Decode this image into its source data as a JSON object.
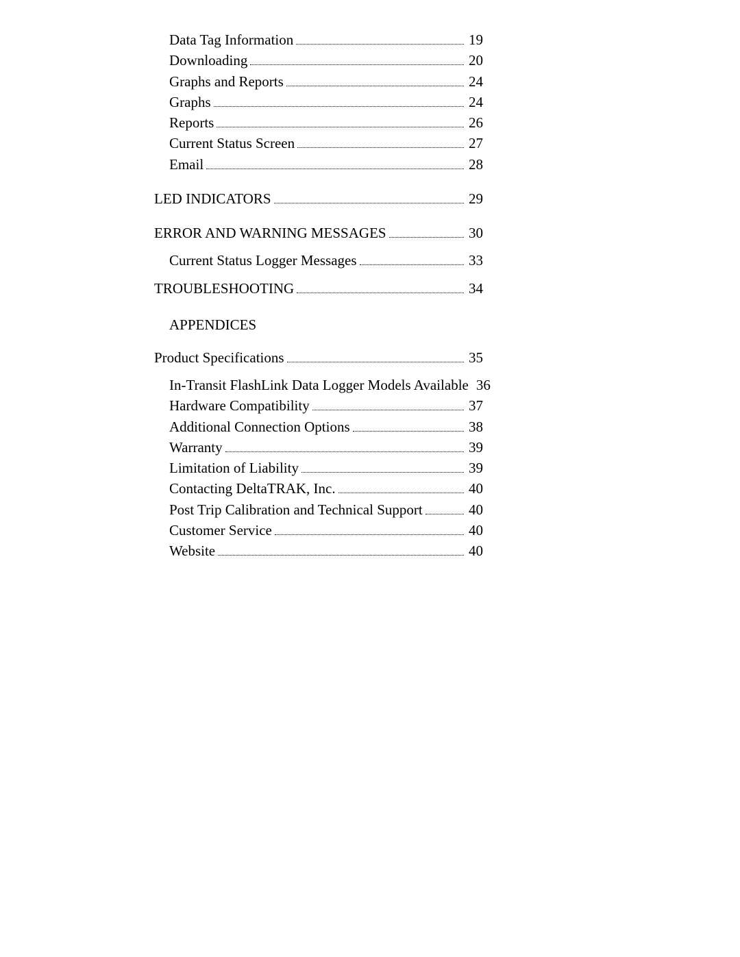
{
  "toc": {
    "group1": [
      {
        "title": "Data Tag Information",
        "page": "19"
      },
      {
        "title": "Downloading",
        "page": "20"
      },
      {
        "title": "Graphs and Reports",
        "page": "24"
      },
      {
        "title": "Graphs",
        "page": "24"
      },
      {
        "title": "Reports",
        "page": "26"
      },
      {
        "title": "Current Status Screen",
        "page": "27"
      },
      {
        "title": "Email",
        "page": "28"
      }
    ],
    "led": {
      "title": "LED INDICATORS",
      "page": "29"
    },
    "error": {
      "title": "ERROR AND WARNING MESSAGES",
      "page": "30"
    },
    "errorSub": {
      "title": "Current Status Logger Messages",
      "page": "33"
    },
    "trouble": {
      "title": "TROUBLESHOOTING",
      "page": "34"
    },
    "appendicesHeading": "APPENDICES",
    "prodSpec": {
      "title": "Product Specifications",
      "page": "35"
    },
    "group2": [
      {
        "title": "In-Transit FlashLink Data Logger Models Available",
        "page": "36"
      },
      {
        "title": "Hardware Compatibility",
        "page": "37"
      },
      {
        "title": "Additional Connection Options",
        "page": "38"
      },
      {
        "title": "Warranty",
        "page": "39"
      },
      {
        "title": "Limitation of Liability",
        "page": "39"
      },
      {
        "title": "Contacting DeltaTRAK, Inc.",
        "page": "40"
      },
      {
        "title": "Post Trip Calibration and Technical Support",
        "page": "40"
      },
      {
        "title": "Customer Service",
        "page": "40"
      },
      {
        "title": "Website",
        "page": "40"
      }
    ]
  }
}
